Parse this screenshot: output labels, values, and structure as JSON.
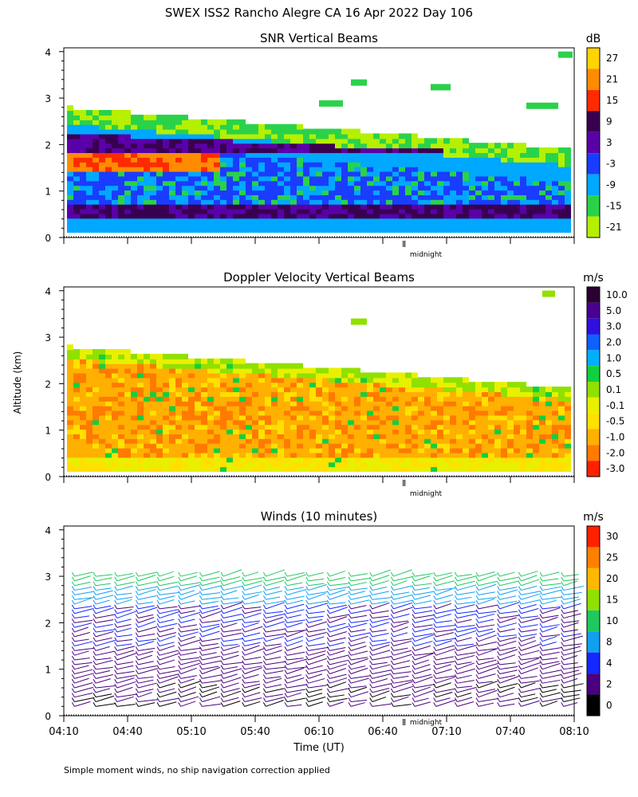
{
  "header": {
    "title": "SWEX ISS2 Rancho Alegre CA   16 Apr 2022 Day 106"
  },
  "footer": {
    "note": "Simple moment winds, no ship navigation correction applied"
  },
  "shared": {
    "ylabel": "Altitude (km)",
    "xlabel": "Time (UT)",
    "y_ticks": [
      "0",
      "1",
      "2",
      "3",
      "4"
    ],
    "x_ticks": [
      "04:10",
      "04:40",
      "05:10",
      "05:40",
      "06:10",
      "06:40",
      "07:10",
      "07:40",
      "08:10"
    ],
    "midnight_label": "midnight"
  },
  "chart_data": [
    {
      "type": "heatmap",
      "title": "SNR Vertical Beams",
      "xlabel": "",
      "ylabel": "Altitude (km)",
      "ylim": [
        0,
        4
      ],
      "xlim": [
        "04:10",
        "08:10"
      ],
      "colorbar": {
        "unit": "dB",
        "tick_labels": [
          "27",
          "21",
          "15",
          "9",
          "3",
          "-3",
          "-9",
          "-15",
          "-21"
        ],
        "colors": [
          "#ffd400",
          "#ff8c00",
          "#ff2a00",
          "#3a0050",
          "#5a00a8",
          "#1a3cff",
          "#00a8ff",
          "#2ad24a",
          "#b4f000"
        ]
      },
      "layers": [
        {
          "alt_bottom_km": 0.1,
          "alt_top_km": 2.8,
          "start": "04:10",
          "end": "08:10",
          "description_level": "weak"
        },
        {
          "alt_km": 0.5,
          "level_db": 3
        },
        {
          "alt_km": 1.6,
          "level_db": 21,
          "start": "04:10",
          "end": "05:10"
        },
        {
          "alt_km": 1.9,
          "level_db": 9
        }
      ],
      "annotations": [
        "midnight"
      ]
    },
    {
      "type": "heatmap",
      "title": "Doppler Velocity Vertical Beams",
      "xlabel": "",
      "ylabel": "Altitude (km)",
      "ylim": [
        0,
        4
      ],
      "xlim": [
        "04:10",
        "08:10"
      ],
      "colorbar": {
        "unit": "m/s",
        "tick_labels": [
          "10.0",
          "5.0",
          "3.0",
          "2.0",
          "1.0",
          "0.5",
          "0.1",
          "-0.1",
          "-0.5",
          "-1.0",
          "-2.0",
          "-3.0"
        ],
        "colors": [
          "#2a0030",
          "#4a0090",
          "#3010e0",
          "#1060ff",
          "#00b0ff",
          "#10d040",
          "#90e000",
          "#e8f000",
          "#ffe000",
          "#ffb000",
          "#ff7a00",
          "#ff2000"
        ]
      },
      "dominant_value_m_s": -0.5,
      "annotations": [
        "midnight"
      ]
    },
    {
      "type": "scatter",
      "title": "Winds (10 minutes)",
      "xlabel": "Time (UT)",
      "ylabel": "Altitude (km)",
      "ylim": [
        0,
        4
      ],
      "xlim": [
        "04:10",
        "08:10"
      ],
      "colorbar": {
        "unit": "m/s",
        "tick_labels": [
          "30",
          "25",
          "20",
          "15",
          "10",
          "8",
          "4",
          "2",
          "0"
        ],
        "colors": [
          "#ff2000",
          "#ff8000",
          "#ffb800",
          "#90e000",
          "#20c860",
          "#10a0f0",
          "#1428ff",
          "#4a0080",
          "#000000"
        ]
      },
      "barb_columns": [
        "04:15",
        "04:25",
        "04:35",
        "04:45",
        "04:55",
        "05:05",
        "05:15",
        "05:25",
        "05:35",
        "05:45",
        "05:55",
        "06:05",
        "06:15",
        "06:25",
        "06:35",
        "06:45",
        "06:55",
        "07:05",
        "07:15",
        "07:25",
        "07:35",
        "07:45",
        "07:55",
        "08:05"
      ],
      "annotations": [
        "midnight"
      ]
    }
  ]
}
